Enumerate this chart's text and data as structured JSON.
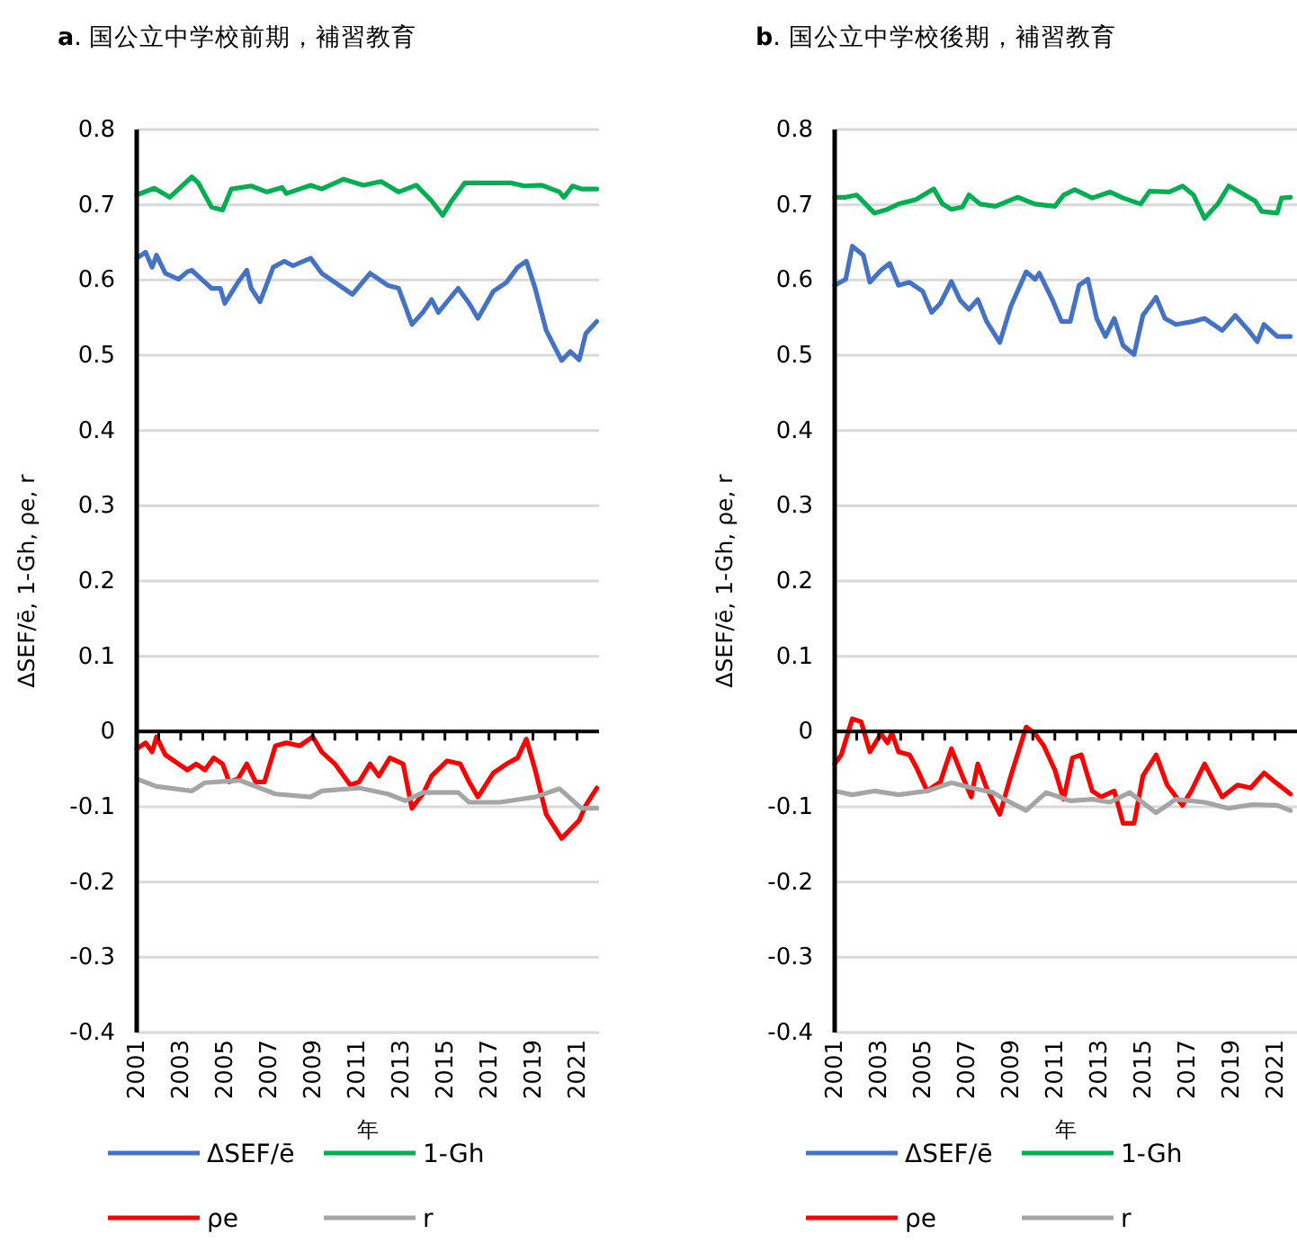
{
  "chart_data": [
    {
      "type": "line",
      "title": "**a**. 国公立中学校前期，補習教育",
      "xlabel": "年",
      "ylabel": "ΔSEF/ē, 1-Gh, ρe, r",
      "xlim": [
        2001,
        2022
      ],
      "xticks": [
        {
          "value": 2001,
          "label": "2001"
        },
        {
          "value": 2002,
          "label": null
        },
        {
          "value": 2003,
          "label": "2003"
        },
        {
          "value": 2004,
          "label": null
        },
        {
          "value": 2005,
          "label": "2005"
        },
        {
          "value": 2006,
          "label": null
        },
        {
          "value": 2007,
          "label": "2007"
        },
        {
          "value": 2008,
          "label": null
        },
        {
          "value": 2009,
          "label": "2009"
        },
        {
          "value": 2010,
          "label": null
        },
        {
          "value": 2011,
          "label": "2011"
        },
        {
          "value": 2012,
          "label": null
        },
        {
          "value": 2013,
          "label": "2013"
        },
        {
          "value": 2014,
          "label": null
        },
        {
          "value": 2015,
          "label": "2015"
        },
        {
          "value": 2016,
          "label": null
        },
        {
          "value": 2017,
          "label": "2017"
        },
        {
          "value": 2018,
          "label": null
        },
        {
          "value": 2019,
          "label": "2019"
        },
        {
          "value": 2020,
          "label": null
        },
        {
          "value": 2021,
          "label": "2021"
        }
      ],
      "ylim": [
        -0.4,
        0.8
      ],
      "yticks": [
        -0.4,
        -0.3,
        -0.2,
        -0.1,
        0,
        0.1,
        0.2,
        0.3,
        0.4,
        0.5,
        0.6,
        0.7,
        0.8
      ],
      "grid": "y",
      "legend": "bottom",
      "series": [
        {
          "name": "ΔSEF/ē",
          "color": "#4472c4",
          "x": [
            2001.0,
            2001.4,
            2001.7,
            2001.9,
            2002.3,
            2002.9,
            2003.3,
            2003.5,
            2004.1,
            2004.4,
            2004.8,
            2005.0,
            2005.6,
            2006.0,
            2006.2,
            2006.6,
            2007.2,
            2007.7,
            2008.1,
            2008.9,
            2009.4,
            2010.0,
            2010.8,
            2011.6,
            2012.4,
            2012.9,
            2013.5,
            2014.0,
            2014.4,
            2014.7,
            2015.6,
            2016.1,
            2016.5,
            2017.2,
            2017.8,
            2018.3,
            2018.7,
            2019.1,
            2019.6,
            2020.3,
            2020.7,
            2021.1,
            2021.4,
            2021.9
          ],
          "values": [
            0.629,
            0.637,
            0.617,
            0.633,
            0.609,
            0.601,
            0.611,
            0.613,
            0.597,
            0.589,
            0.589,
            0.569,
            0.597,
            0.613,
            0.589,
            0.571,
            0.617,
            0.625,
            0.619,
            0.629,
            0.609,
            0.597,
            0.581,
            0.609,
            0.593,
            0.589,
            0.541,
            0.557,
            0.574,
            0.557,
            0.589,
            0.569,
            0.549,
            0.585,
            0.597,
            0.617,
            0.625,
            0.589,
            0.533,
            0.493,
            0.505,
            0.494,
            0.529,
            0.545
          ]
        },
        {
          "name": "1-Gh",
          "color": "#00b050",
          "x": [
            2001.0,
            2001.8,
            2002.5,
            2003.5,
            2003.8,
            2004.4,
            2004.9,
            2005.3,
            2006.2,
            2006.9,
            2007.6,
            2007.8,
            2008.9,
            2009.4,
            2010.4,
            2011.3,
            2012.1,
            2012.9,
            2013.7,
            2014.4,
            2014.9,
            2015.3,
            2015.9,
            2017.2,
            2018.0,
            2018.6,
            2019.4,
            2020.2,
            2020.4,
            2020.8,
            2021.2,
            2021.9
          ],
          "values": [
            0.713,
            0.722,
            0.71,
            0.737,
            0.729,
            0.697,
            0.693,
            0.721,
            0.725,
            0.717,
            0.723,
            0.715,
            0.726,
            0.721,
            0.734,
            0.726,
            0.731,
            0.717,
            0.726,
            0.705,
            0.686,
            0.705,
            0.729,
            0.729,
            0.729,
            0.725,
            0.726,
            0.717,
            0.71,
            0.725,
            0.721,
            0.721
          ]
        },
        {
          "name": "ρe",
          "color": "#ff0000",
          "x": [
            2001.0,
            2001.4,
            2001.7,
            2001.9,
            2002.3,
            2002.9,
            2003.3,
            2003.7,
            2004.1,
            2004.5,
            2004.9,
            2005.2,
            2005.6,
            2006.0,
            2006.4,
            2006.8,
            2007.3,
            2007.8,
            2008.4,
            2009.0,
            2009.4,
            2010.0,
            2010.7,
            2011.1,
            2011.6,
            2012.0,
            2012.5,
            2013.1,
            2013.5,
            2014.0,
            2014.4,
            2015.1,
            2015.7,
            2016.1,
            2016.5,
            2017.2,
            2017.8,
            2018.3,
            2018.7,
            2019.1,
            2019.6,
            2020.3,
            2020.7,
            2021.1,
            2021.4,
            2021.9
          ],
          "values": [
            -0.023,
            -0.015,
            -0.027,
            -0.007,
            -0.031,
            -0.043,
            -0.051,
            -0.043,
            -0.051,
            -0.035,
            -0.043,
            -0.067,
            -0.063,
            -0.043,
            -0.067,
            -0.067,
            -0.019,
            -0.015,
            -0.019,
            -0.007,
            -0.027,
            -0.043,
            -0.071,
            -0.067,
            -0.043,
            -0.059,
            -0.035,
            -0.043,
            -0.102,
            -0.083,
            -0.059,
            -0.039,
            -0.043,
            -0.067,
            -0.087,
            -0.055,
            -0.043,
            -0.035,
            -0.01,
            -0.051,
            -0.11,
            -0.142,
            -0.13,
            -0.118,
            -0.098,
            -0.075
          ]
        },
        {
          "name": "r",
          "color": "#a5a5a5",
          "x": [
            2001.0,
            2001.9,
            2003.5,
            2004.1,
            2005.7,
            2007.3,
            2008.9,
            2009.4,
            2011.1,
            2012.4,
            2013.2,
            2014.0,
            2015.6,
            2016.1,
            2017.5,
            2019.1,
            2020.2,
            2021.2,
            2021.9
          ],
          "values": [
            -0.063,
            -0.073,
            -0.079,
            -0.068,
            -0.065,
            -0.083,
            -0.087,
            -0.079,
            -0.075,
            -0.083,
            -0.092,
            -0.081,
            -0.081,
            -0.094,
            -0.094,
            -0.087,
            -0.076,
            -0.102,
            -0.102
          ]
        }
      ]
    },
    {
      "type": "line",
      "title": "**b**. 国公立中学校後期，補習教育",
      "xlabel": "年",
      "ylabel": "ΔSEF/ē, 1-Gh, ρe, r",
      "xlim": [
        2001,
        2022
      ],
      "xticks": [
        {
          "value": 2001,
          "label": "2001"
        },
        {
          "value": 2002,
          "label": null
        },
        {
          "value": 2003,
          "label": "2003"
        },
        {
          "value": 2004,
          "label": null
        },
        {
          "value": 2005,
          "label": "2005"
        },
        {
          "value": 2006,
          "label": null
        },
        {
          "value": 2007,
          "label": "2007"
        },
        {
          "value": 2008,
          "label": null
        },
        {
          "value": 2009,
          "label": "2009"
        },
        {
          "value": 2010,
          "label": null
        },
        {
          "value": 2011,
          "label": "2011"
        },
        {
          "value": 2012,
          "label": null
        },
        {
          "value": 2013,
          "label": "2013"
        },
        {
          "value": 2014,
          "label": null
        },
        {
          "value": 2015,
          "label": "2015"
        },
        {
          "value": 2016,
          "label": null
        },
        {
          "value": 2017,
          "label": "2017"
        },
        {
          "value": 2018,
          "label": null
        },
        {
          "value": 2019,
          "label": "2019"
        },
        {
          "value": 2020,
          "label": null
        },
        {
          "value": 2021,
          "label": "2021"
        }
      ],
      "ylim": [
        -0.4,
        0.8
      ],
      "yticks": [
        -0.4,
        -0.3,
        -0.2,
        -0.1,
        0,
        0.1,
        0.2,
        0.3,
        0.4,
        0.5,
        0.6,
        0.7,
        0.8
      ],
      "grid": "y",
      "legend": "bottom",
      "series": [
        {
          "name": "ΔSEF/ē",
          "color": "#4472c4",
          "x": [
            2001.0,
            2001.5,
            2001.8,
            2002.3,
            2002.6,
            2003.1,
            2003.5,
            2003.9,
            2004.4,
            2005.0,
            2005.4,
            2005.8,
            2006.3,
            2006.7,
            2007.1,
            2007.5,
            2007.9,
            2008.5,
            2009.0,
            2009.7,
            2010.1,
            2010.3,
            2010.9,
            2011.3,
            2011.7,
            2012.1,
            2012.5,
            2012.9,
            2013.3,
            2013.7,
            2014.1,
            2014.6,
            2015.0,
            2015.6,
            2016.0,
            2016.5,
            2017.3,
            2017.8,
            2018.6,
            2019.2,
            2019.8,
            2020.2,
            2020.5,
            2021.1,
            2021.7
          ],
          "values": [
            0.593,
            0.601,
            0.645,
            0.633,
            0.597,
            0.613,
            0.622,
            0.593,
            0.597,
            0.585,
            0.557,
            0.569,
            0.598,
            0.573,
            0.561,
            0.574,
            0.545,
            0.517,
            0.565,
            0.611,
            0.601,
            0.609,
            0.573,
            0.545,
            0.545,
            0.593,
            0.601,
            0.549,
            0.525,
            0.549,
            0.513,
            0.501,
            0.553,
            0.577,
            0.549,
            0.541,
            0.545,
            0.549,
            0.533,
            0.553,
            0.533,
            0.518,
            0.541,
            0.525,
            0.525
          ]
        },
        {
          "name": "1-Gh",
          "color": "#00b050",
          "x": [
            2001.0,
            2001.5,
            2002.0,
            2002.8,
            2003.4,
            2003.9,
            2004.7,
            2005.5,
            2005.9,
            2006.3,
            2006.8,
            2007.1,
            2007.6,
            2008.3,
            2009.3,
            2010.1,
            2011.0,
            2011.4,
            2011.9,
            2012.7,
            2013.5,
            2014.1,
            2014.9,
            2015.3,
            2016.2,
            2016.8,
            2017.3,
            2017.8,
            2018.4,
            2018.9,
            2019.4,
            2020.1,
            2020.4,
            2021.1,
            2021.3,
            2021.7
          ],
          "values": [
            0.71,
            0.71,
            0.713,
            0.689,
            0.694,
            0.701,
            0.707,
            0.721,
            0.701,
            0.694,
            0.697,
            0.713,
            0.701,
            0.698,
            0.71,
            0.701,
            0.698,
            0.713,
            0.72,
            0.709,
            0.717,
            0.709,
            0.701,
            0.718,
            0.717,
            0.725,
            0.713,
            0.682,
            0.701,
            0.725,
            0.717,
            0.705,
            0.691,
            0.689,
            0.709,
            0.71
          ]
        },
        {
          "name": "ρe",
          "color": "#ff0000",
          "x": [
            2001.0,
            2001.3,
            2001.8,
            2002.2,
            2002.6,
            2003.1,
            2003.4,
            2003.6,
            2003.9,
            2004.4,
            2004.7,
            2005.2,
            2005.8,
            2006.3,
            2006.8,
            2007.2,
            2007.5,
            2007.9,
            2008.5,
            2009.0,
            2009.7,
            2010.1,
            2010.5,
            2011.0,
            2011.4,
            2011.8,
            2012.2,
            2012.7,
            2013.1,
            2013.7,
            2014.1,
            2014.6,
            2015.0,
            2015.6,
            2016.1,
            2016.8,
            2017.2,
            2017.8,
            2018.6,
            2019.3,
            2019.9,
            2020.5,
            2021.0,
            2021.7
          ],
          "values": [
            -0.043,
            -0.031,
            0.017,
            0.013,
            -0.027,
            -0.003,
            -0.015,
            -0.002,
            -0.027,
            -0.031,
            -0.047,
            -0.079,
            -0.067,
            -0.023,
            -0.059,
            -0.087,
            -0.043,
            -0.075,
            -0.11,
            -0.059,
            0.006,
            -0.003,
            -0.019,
            -0.051,
            -0.09,
            -0.035,
            -0.031,
            -0.079,
            -0.087,
            -0.079,
            -0.122,
            -0.122,
            -0.059,
            -0.031,
            -0.071,
            -0.098,
            -0.079,
            -0.043,
            -0.087,
            -0.071,
            -0.075,
            -0.055,
            -0.067,
            -0.083
          ]
        },
        {
          "name": "r",
          "color": "#a5a5a5",
          "x": [
            2001.0,
            2001.8,
            2002.8,
            2003.9,
            2005.2,
            2006.3,
            2007.4,
            2008.2,
            2008.7,
            2009.7,
            2010.6,
            2011.7,
            2012.7,
            2013.5,
            2014.4,
            2015.6,
            2016.5,
            2017.8,
            2018.9,
            2020.0,
            2021.1,
            2021.7
          ],
          "values": [
            -0.079,
            -0.084,
            -0.079,
            -0.084,
            -0.079,
            -0.068,
            -0.076,
            -0.081,
            -0.09,
            -0.105,
            -0.081,
            -0.092,
            -0.09,
            -0.094,
            -0.081,
            -0.108,
            -0.09,
            -0.094,
            -0.102,
            -0.097,
            -0.098,
            -0.105
          ]
        }
      ]
    }
  ]
}
